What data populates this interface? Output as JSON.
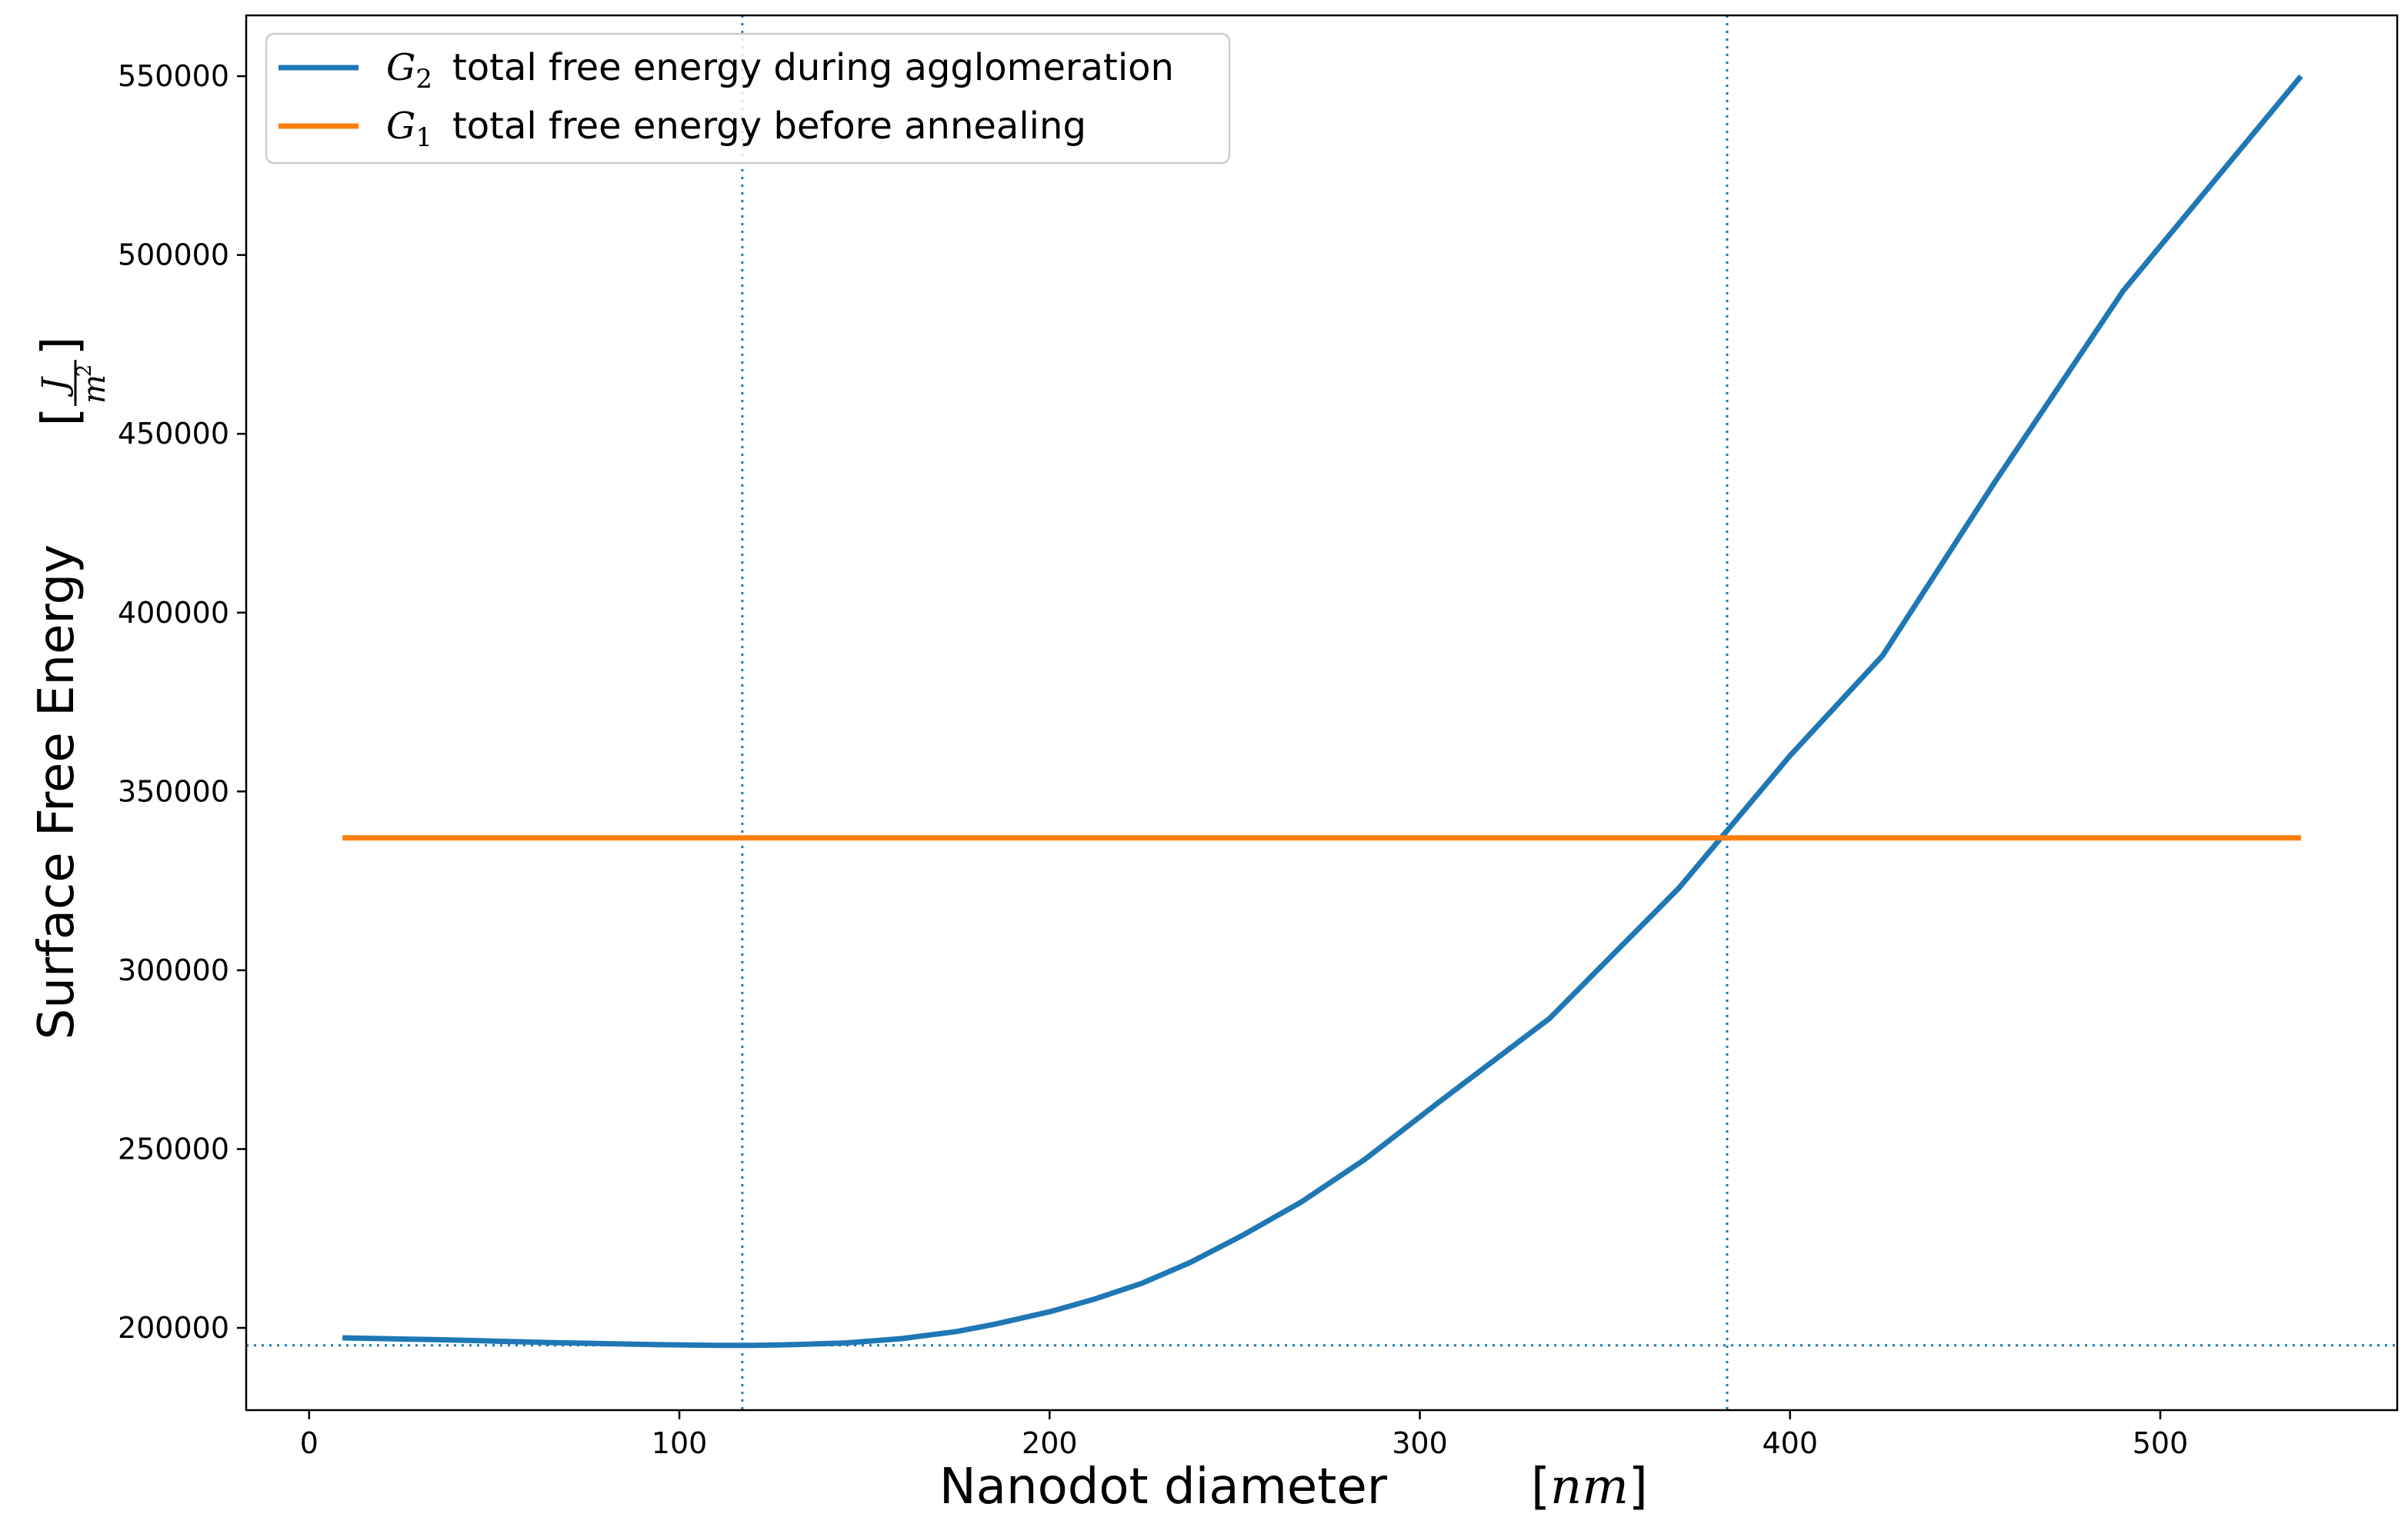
{
  "chart_data": {
    "type": "line",
    "xlabel": "Nanodot diameter",
    "xlabel_unit": "[nm]",
    "ylabel": "Surface Free Energy",
    "ylabel_unit": "[J/m²]",
    "xlim": [
      -17,
      564
    ],
    "ylim": [
      177000,
      567000
    ],
    "x_ticks": [
      0,
      100,
      200,
      300,
      400,
      500
    ],
    "y_ticks": [
      200000,
      250000,
      300000,
      350000,
      400000,
      450000,
      500000,
      550000
    ],
    "grid": false,
    "legend_position": "top-left",
    "series": [
      {
        "name": "G₂ total free energy during agglomeration",
        "color": "#1f77b4",
        "x": [
          9,
          20,
          35,
          50,
          65,
          80,
          95,
          110,
          120,
          130,
          145,
          160,
          175,
          185,
          200,
          212,
          225,
          238,
          252,
          268,
          285,
          305,
          335,
          370,
          400,
          425,
          455,
          490,
          538
        ],
        "y": [
          197200,
          197000,
          196700,
          196300,
          195900,
          195600,
          195300,
          195100,
          195100,
          195300,
          195800,
          197000,
          199000,
          201000,
          204500,
          208000,
          212500,
          218300,
          225800,
          235200,
          247000,
          263000,
          286500,
          323000,
          360000,
          388000,
          436000,
          490000,
          550000
        ]
      },
      {
        "name": "G₁ total free energy before annealing",
        "color": "#ff7f0e",
        "x": [
          9,
          538
        ],
        "y": [
          337000,
          337000
        ]
      }
    ],
    "reference_lines": {
      "color": "#1f77b4",
      "vertical_x": [
        117,
        383
      ],
      "horizontal_y": [
        195100
      ]
    },
    "legend": [
      {
        "symbol": "G",
        "subscript": "2",
        "text": "total free energy during agglomeration"
      },
      {
        "symbol": "G",
        "subscript": "1",
        "text": "total free energy before annealing"
      }
    ]
  }
}
